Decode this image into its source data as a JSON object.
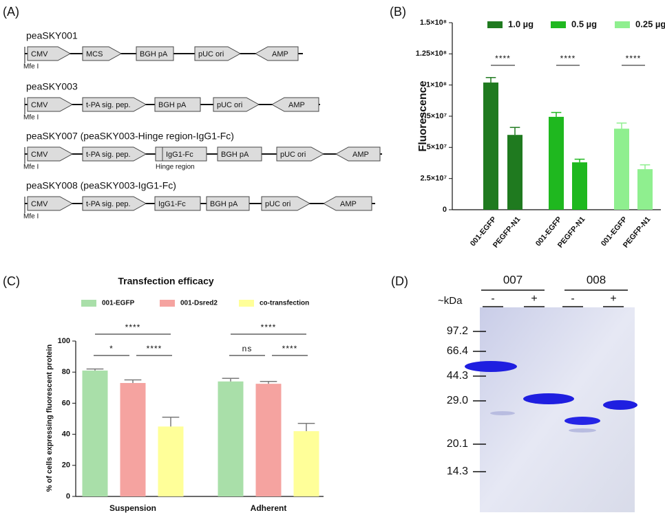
{
  "panel_labels": [
    "(A)",
    "(B)",
    "(C)",
    "(D)"
  ],
  "plasmids": [
    {
      "title": "peaSKY001",
      "site": "Mfe I",
      "elements": [
        "CMV",
        "MCS",
        "BGH pA",
        "pUC ori",
        "AMP"
      ]
    },
    {
      "title": "peaSKY003",
      "site": "Mfe I",
      "elements": [
        "CMV",
        "t-PA sig. pep.",
        "BGH pA",
        "pUC ori",
        "AMP"
      ]
    },
    {
      "title": "peaSKY007 (peaSKY003-Hinge region-IgG1-Fc)",
      "site": "Mfe I",
      "elements": [
        "CMV",
        "t-PA sig. pep.",
        "IgG1-Fc",
        "BGH pA",
        "pUC ori",
        "AMP"
      ],
      "note": "Hinge region"
    },
    {
      "title": "peaSKY008 (peaSKY003-IgG1-Fc)",
      "site": "Mfe I",
      "elements": [
        "CMV",
        "t-PA sig. pep.",
        "IgG1-Fc",
        "BGH pA",
        "pUC ori",
        "AMP"
      ]
    }
  ],
  "chart_data": [
    {
      "type": "bar",
      "ylabel": "Fluorescence",
      "categories": [
        "001-EGFP",
        "PEGFP-N1",
        "001-EGFP",
        "PEGFP-N1",
        "001-EGFP",
        "PEGFP-N1"
      ],
      "series": [
        {
          "name": "1.0 µg",
          "color": "#1f7a1f",
          "values": [
            102000000,
            60000000,
            null,
            null,
            null,
            null
          ],
          "errors": [
            4000000,
            6000000,
            null,
            null,
            null,
            null
          ]
        },
        {
          "name": "0.5 µg",
          "color": "#1fb81f",
          "values": [
            null,
            null,
            74500000,
            38000000,
            null,
            null
          ],
          "errors": [
            null,
            null,
            3500000,
            2500000,
            null,
            null
          ]
        },
        {
          "name": "0.25 µg",
          "color": "#8fef8f",
          "values": [
            null,
            null,
            null,
            null,
            65000000,
            32500000
          ],
          "errors": [
            null,
            null,
            null,
            null,
            4500000,
            3500000
          ]
        }
      ],
      "ylim": [
        0,
        150000000
      ],
      "yticks": [
        0,
        {
          "value": 25000000,
          "label": "2.5×10⁷"
        },
        {
          "value": 50000000,
          "label": "5×10⁷"
        },
        {
          "value": 75000000,
          "label": "7.5×10⁷"
        },
        {
          "value": 100000000,
          "label": "1×10⁸"
        },
        {
          "value": 125000000,
          "label": "1.25×10⁸"
        },
        {
          "value": 150000000,
          "label": "1.5×10⁸"
        }
      ],
      "annotations": [
        "****",
        "****",
        "****"
      ]
    },
    {
      "type": "bar",
      "title": "Transfection efficacy",
      "ylabel": "% of cells expressing fluorescent protein",
      "categories": [
        "Suspension",
        "Adherent"
      ],
      "series": [
        {
          "name": "001-EGFP",
          "color": "#a9dfa9",
          "values": [
            81,
            74
          ],
          "errors": [
            1,
            2
          ]
        },
        {
          "name": "001-Dsred2",
          "color": "#f5a3a0",
          "values": [
            73,
            72.5
          ],
          "errors": [
            2,
            1.5
          ]
        },
        {
          "name": "co-transfection",
          "color": "#ffff99",
          "values": [
            45,
            42
          ],
          "errors": [
            6,
            5
          ]
        }
      ],
      "ylim": [
        0,
        100
      ],
      "yticks": [
        0,
        20,
        40,
        60,
        80,
        100
      ],
      "annotations": [
        [
          "****",
          "*",
          "****"
        ],
        [
          "****",
          "ns",
          "****"
        ]
      ]
    }
  ],
  "gel": {
    "lanes": [
      {
        "sample": "007",
        "treatments": [
          "-",
          "+"
        ]
      },
      {
        "sample": "008",
        "treatments": [
          "-",
          "+"
        ]
      }
    ],
    "unit": "~kDa",
    "markers": [
      "97.2",
      "66.4",
      "44.3",
      "29.0",
      "20.1",
      "14.3"
    ]
  }
}
